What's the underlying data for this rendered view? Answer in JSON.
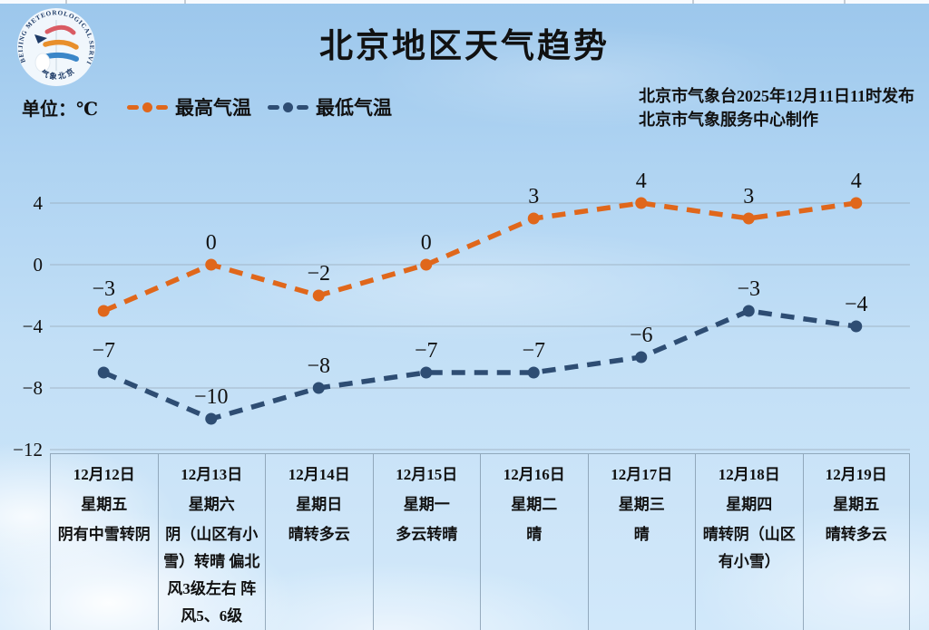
{
  "header": {
    "title": "北京地区天气趋势",
    "publisher_line1": "北京市气象台2025年12月11日11时发布",
    "publisher_line2": "北京市气象服务中心制作",
    "logo_ring_text": "BEIJING METEOROLOGICAL SERVICE",
    "logo_bottom_text": "气象北京"
  },
  "legend": {
    "unit_label": "单位：℃",
    "items": [
      {
        "label": "最高气温",
        "color": "#E0671B"
      },
      {
        "label": "最低气温",
        "color": "#2E4D73"
      }
    ]
  },
  "chart_data": {
    "type": "line",
    "title": "北京地区天气趋势",
    "categories": [
      "12月12日",
      "12月13日",
      "12月14日",
      "12月15日",
      "12月16日",
      "12月17日",
      "12月18日",
      "12月19日"
    ],
    "series": [
      {
        "name": "最高气温",
        "color": "#E0671B",
        "values": [
          -3,
          0,
          -2,
          0,
          3,
          4,
          3,
          4
        ]
      },
      {
        "name": "最低气温",
        "color": "#2E4D73",
        "values": [
          -7,
          -10,
          -8,
          -7,
          -7,
          -6,
          -3,
          -4
        ]
      }
    ],
    "ylabel": "℃",
    "xlabel": "",
    "ylim": [
      -12,
      6
    ],
    "yticks": [
      4,
      0,
      -4,
      -8,
      -12
    ],
    "grid": true,
    "line_style": "dashed",
    "legend_position": "top-left"
  },
  "forecast_table": {
    "columns": [
      {
        "date": "12月12日",
        "weekday": "星期五",
        "weather": "阴有中雪转阴"
      },
      {
        "date": "12月13日",
        "weekday": "星期六",
        "weather": "阴（山区有小雪）转晴 偏北风3级左右 阵风5、6级"
      },
      {
        "date": "12月14日",
        "weekday": "星期日",
        "weather": "晴转多云"
      },
      {
        "date": "12月15日",
        "weekday": "星期一",
        "weather": "多云转晴"
      },
      {
        "date": "12月16日",
        "weekday": "星期二",
        "weather": "晴"
      },
      {
        "date": "12月17日",
        "weekday": "星期三",
        "weather": "晴"
      },
      {
        "date": "12月18日",
        "weekday": "星期四",
        "weather": "晴转阴（山区有小雪）"
      },
      {
        "date": "12月19日",
        "weekday": "星期五",
        "weather": "晴转多云"
      }
    ]
  },
  "colors": {
    "max_line": "#E0671B",
    "min_line": "#2E4D73",
    "gridline": "#98A9B8",
    "table_border": "#7D94A8",
    "text": "#111111",
    "sky_top": "#9CC7EC",
    "sky_bottom": "#CFE7FA"
  }
}
